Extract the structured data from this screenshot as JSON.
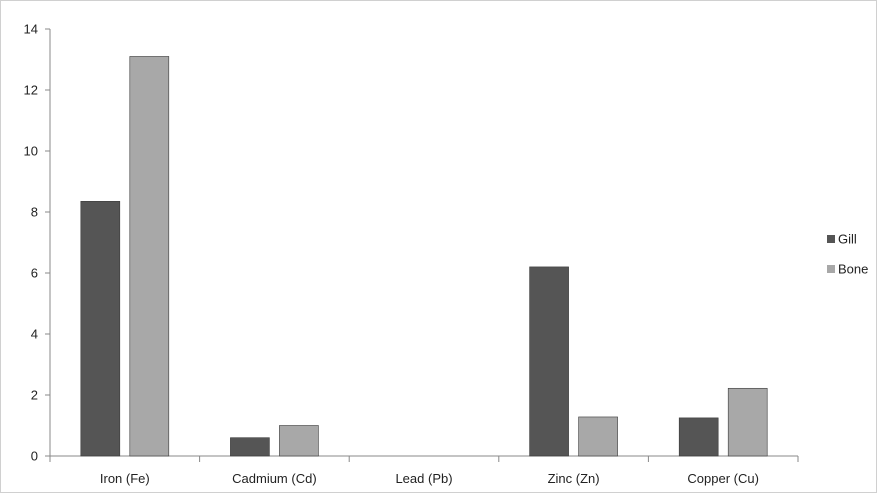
{
  "chart_data": {
    "type": "bar",
    "categories": [
      "Iron  (Fe)",
      "Cadmium (Cd)",
      "Lead (Pb)",
      "Zinc (Zn)",
      "Copper (Cu)"
    ],
    "series": [
      {
        "name": "Gill",
        "values": [
          8.35,
          0.6,
          0,
          6.2,
          1.25
        ],
        "color": "#555555"
      },
      {
        "name": "Bone",
        "values": [
          13.1,
          1.0,
          0,
          1.28,
          2.22
        ],
        "color": "#a8a8a8"
      }
    ],
    "title": "",
    "xlabel": "",
    "ylabel": "",
    "ylim": [
      0,
      14
    ],
    "yticks": [
      0,
      2,
      4,
      6,
      8,
      10,
      12,
      14
    ],
    "grid": false,
    "legend_position": "right"
  }
}
